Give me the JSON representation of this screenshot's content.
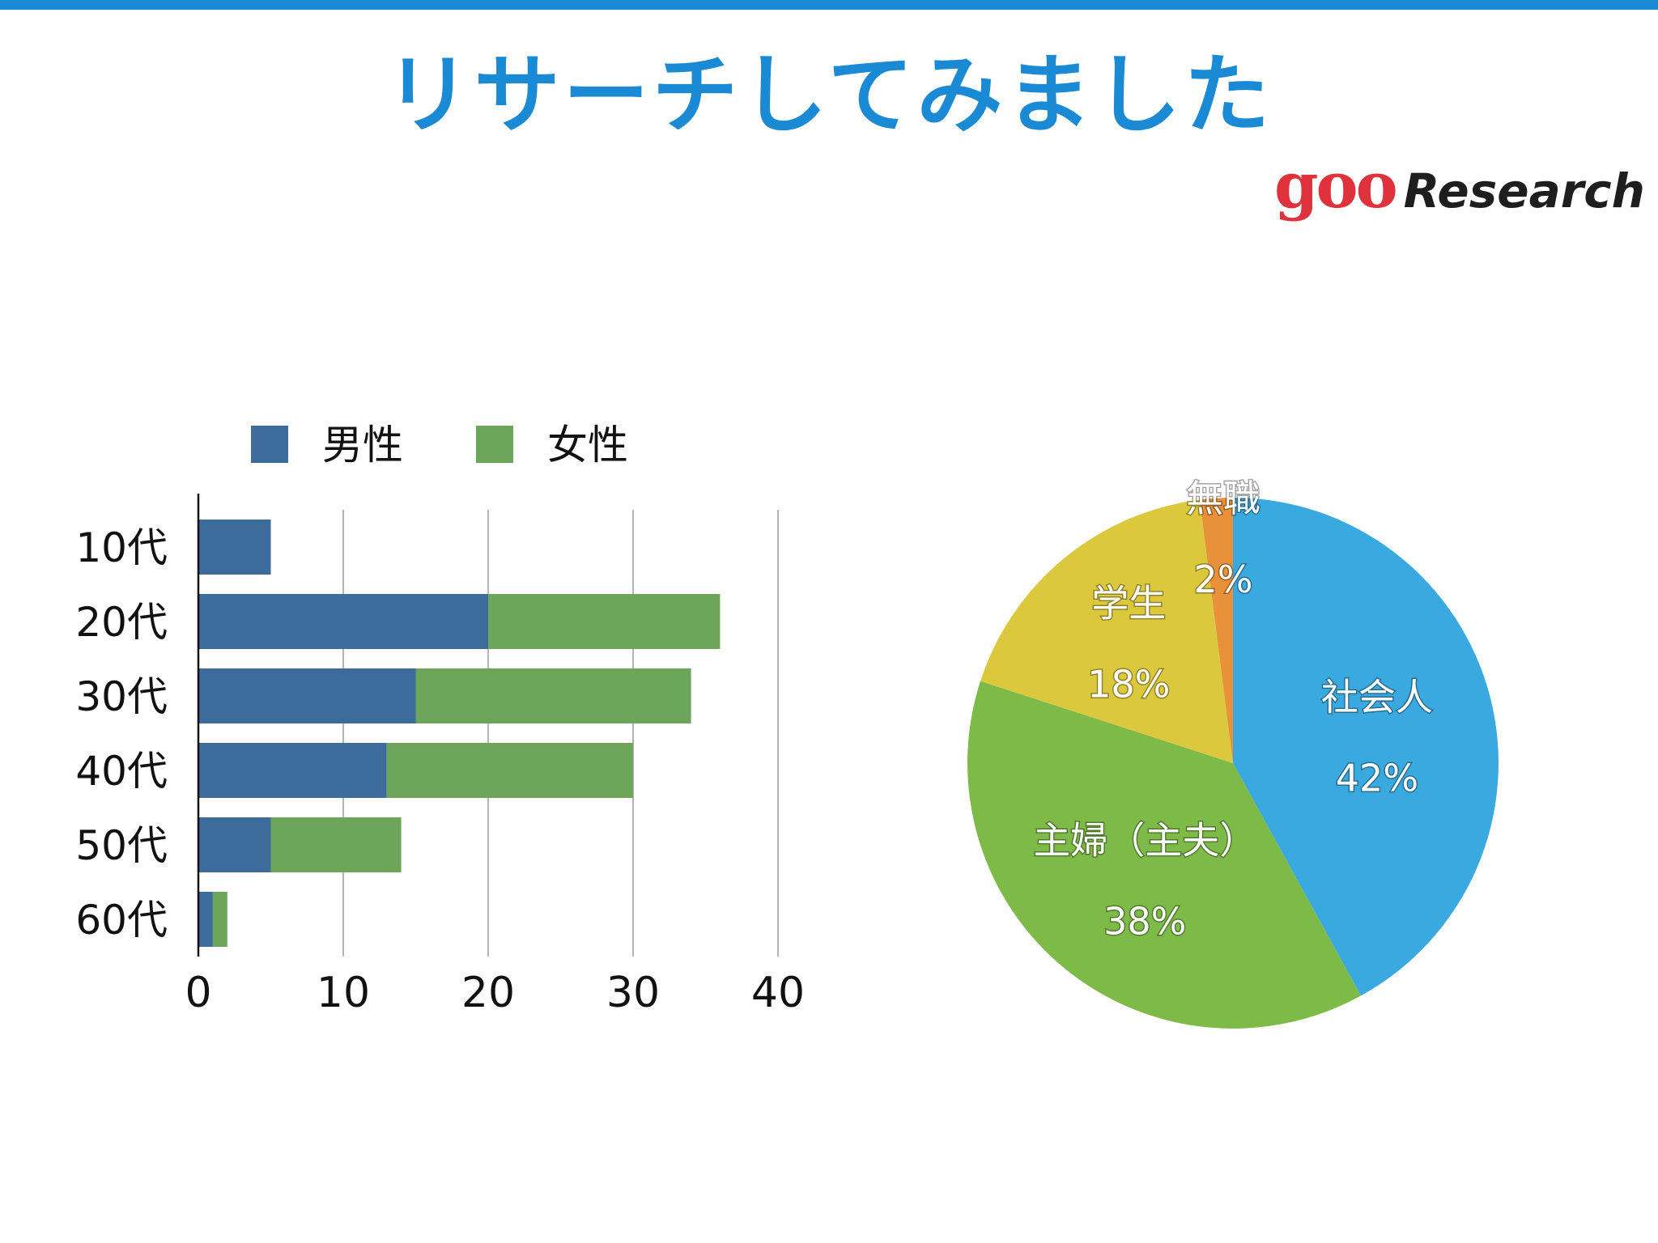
{
  "slide": {
    "title": "リサーチしてみました",
    "logo_goo": "goo",
    "logo_research": "Research",
    "accent": "#1a8ad4"
  },
  "chart_data": [
    {
      "type": "bar",
      "orientation": "horizontal",
      "stacked": true,
      "categories": [
        "10代",
        "20代",
        "30代",
        "40代",
        "50代",
        "60代"
      ],
      "series": [
        {
          "name": "男性",
          "color": "#3d6b9b",
          "values": [
            5,
            20,
            15,
            13,
            5,
            1
          ]
        },
        {
          "name": "女性",
          "color": "#6da55a",
          "values": [
            0,
            16,
            19,
            17,
            9,
            1
          ]
        }
      ],
      "xlim": [
        0,
        40
      ],
      "xticks": [
        "0",
        "10",
        "20",
        "30",
        "40"
      ],
      "grid": true,
      "legend": "top"
    },
    {
      "type": "pie",
      "slices": [
        {
          "label": "社会人",
          "value": 42,
          "pct": "42%",
          "color": "#3aa9e0"
        },
        {
          "label": "主婦（主夫）",
          "value": 38,
          "pct": "38%",
          "color": "#7dba48"
        },
        {
          "label": "学生",
          "value": 18,
          "pct": "18%",
          "color": "#dcc83c"
        },
        {
          "label": "無職",
          "value": 2,
          "pct": "2%",
          "color": "#e8913a"
        }
      ]
    }
  ]
}
